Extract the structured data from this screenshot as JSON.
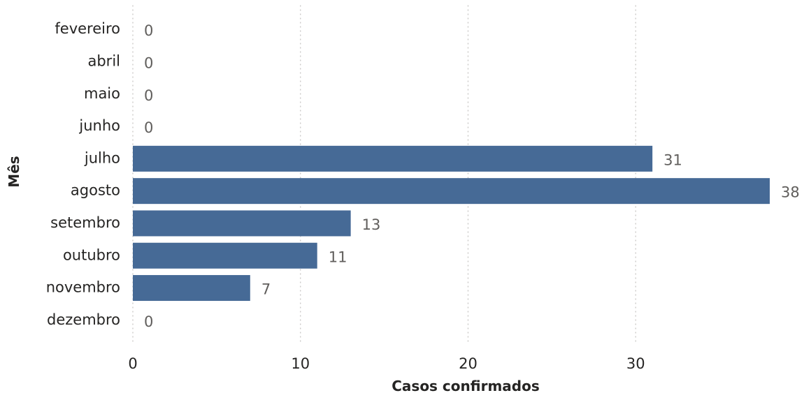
{
  "chart_data": {
    "type": "bar",
    "orientation": "horizontal",
    "categories": [
      "fevereiro",
      "abril",
      "maio",
      "junho",
      "julho",
      "agosto",
      "setembro",
      "outubro",
      "novembro",
      "dezembro"
    ],
    "values": [
      0,
      0,
      0,
      0,
      31,
      38,
      13,
      11,
      7,
      0
    ],
    "data_labels": [
      "0",
      "0",
      "0",
      "0",
      "31",
      "38",
      "13",
      "11",
      "7",
      "0"
    ],
    "xlabel": "Casos confirmados",
    "ylabel": "Mês",
    "xlim": [
      0,
      38
    ],
    "x_ticks": [
      "0",
      "10",
      "20",
      "30"
    ],
    "x_tick_values": [
      0,
      10,
      20,
      30
    ],
    "grid": "vertical-dotted",
    "legend": "none",
    "bar_color": "#466a96"
  }
}
